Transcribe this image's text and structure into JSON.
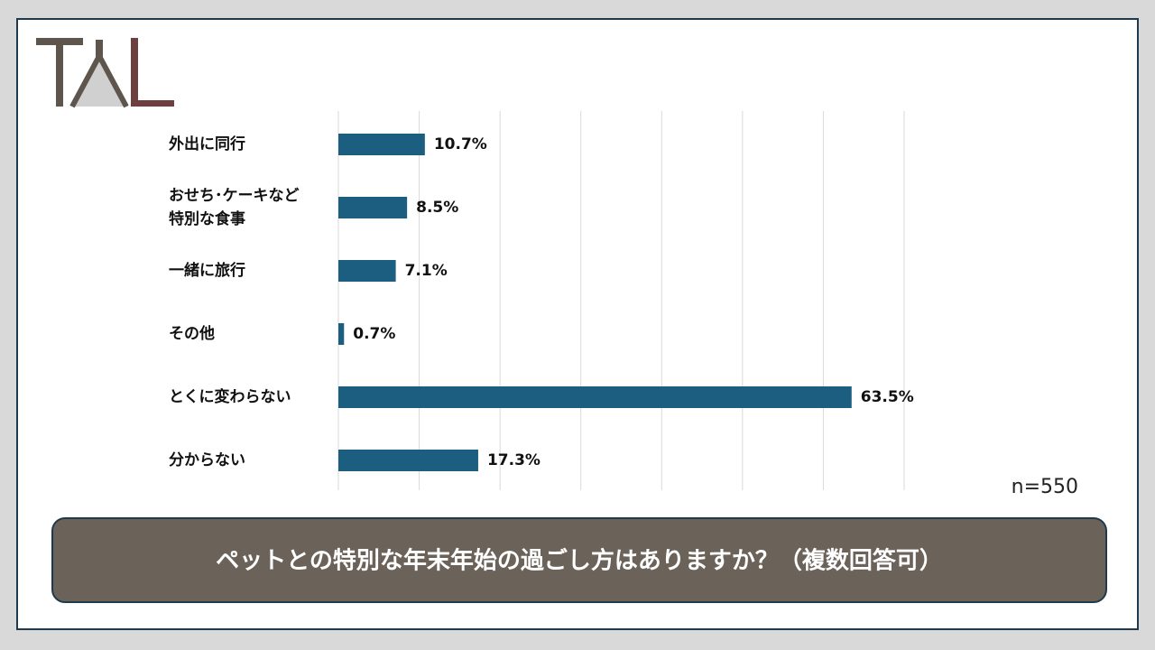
{
  "chart_data": {
    "type": "bar",
    "orientation": "horizontal",
    "categories": [
      "外出に同行",
      "おせち･ケーキなど\n特別な食事",
      "一緒に旅行",
      "その他",
      "とくに変わらない",
      "分からない"
    ],
    "values": [
      10.7,
      8.5,
      7.1,
      0.7,
      63.5,
      17.3
    ],
    "value_labels": [
      "10.7%",
      "8.5%",
      "7.1%",
      "0.7%",
      "63.5%",
      "17.3%"
    ],
    "color": "#1b5e80",
    "xlim": [
      0,
      70
    ],
    "xticks": [
      0,
      10,
      20,
      30,
      40,
      50,
      60,
      70
    ],
    "grid": true,
    "annotation": "n=550",
    "title": "ペットとの特別な年末年始の過ごし方はありますか？（複数回答可）"
  }
}
